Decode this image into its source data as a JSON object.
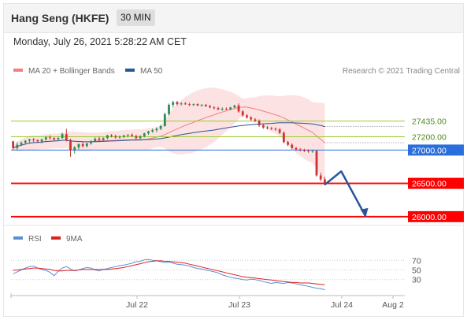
{
  "header": {
    "title": "Hang Seng (HKFE)",
    "interval": "30 MIN"
  },
  "datetime": "Monday, July 26, 2021 5:28:22 AM CET",
  "credit": "Research © 2021 Trading Central",
  "colors": {
    "ma20": "#f08080",
    "ma50": "#2a5599",
    "support_line": "#ff0000",
    "pivot_line": "#2a6fdb",
    "resistance_line": "#9acd32",
    "up_candle": "#2e8b57",
    "down_candle": "#cc3333",
    "arrow": "#2a5599",
    "rsi": "#5b8fd6",
    "rsi_ma": "#dd2222"
  },
  "chart_data": [
    {
      "type": "line",
      "name": "price-chart",
      "legend": [
        {
          "label": "MA 20 + Bollinger Bands",
          "color": "#f08080"
        },
        {
          "label": "MA 50",
          "color": "#2a5599"
        }
      ],
      "x_ticks": [
        "Jul 22",
        "Jul 23",
        "Jul 24",
        "Aug 2"
      ],
      "ylim": [
        25880,
        28070
      ],
      "candles": [
        [
          27130,
          27140,
          27000,
          27030
        ],
        [
          27030,
          27120,
          27000,
          27080
        ],
        [
          27080,
          27130,
          27060,
          27110
        ],
        [
          27110,
          27150,
          27080,
          27140
        ],
        [
          27140,
          27170,
          27110,
          27160
        ],
        [
          27160,
          27180,
          27120,
          27150
        ],
        [
          27150,
          27160,
          27110,
          27130
        ],
        [
          27130,
          27170,
          27100,
          27160
        ],
        [
          27160,
          27210,
          27140,
          27190
        ],
        [
          27190,
          27220,
          27160,
          27180
        ],
        [
          27180,
          27190,
          27140,
          27160
        ],
        [
          27160,
          27200,
          27140,
          27180
        ],
        [
          27180,
          27260,
          27170,
          27240
        ],
        [
          27240,
          27320,
          27130,
          27150
        ],
        [
          27150,
          27170,
          26900,
          27000
        ],
        [
          27000,
          27060,
          26950,
          27040
        ],
        [
          27040,
          27100,
          27010,
          27090
        ],
        [
          27090,
          27120,
          27040,
          27060
        ],
        [
          27060,
          27110,
          27040,
          27100
        ],
        [
          27100,
          27150,
          27080,
          27130
        ],
        [
          27130,
          27190,
          27120,
          27170
        ],
        [
          27170,
          27200,
          27130,
          27150
        ],
        [
          27150,
          27190,
          27140,
          27180
        ],
        [
          27180,
          27230,
          27160,
          27220
        ],
        [
          27220,
          27240,
          27190,
          27210
        ],
        [
          27210,
          27230,
          27170,
          27190
        ],
        [
          27190,
          27220,
          27170,
          27200
        ],
        [
          27200,
          27230,
          27180,
          27220
        ],
        [
          27220,
          27240,
          27190,
          27230
        ],
        [
          27230,
          27250,
          27200,
          27210
        ],
        [
          27210,
          27230,
          27160,
          27180
        ],
        [
          27180,
          27220,
          27160,
          27210
        ],
        [
          27210,
          27260,
          27190,
          27250
        ],
        [
          27250,
          27290,
          27230,
          27280
        ],
        [
          27280,
          27320,
          27260,
          27300
        ],
        [
          27300,
          27340,
          27270,
          27320
        ],
        [
          27320,
          27380,
          27300,
          27360
        ],
        [
          27360,
          27560,
          27350,
          27540
        ],
        [
          27540,
          27700,
          27520,
          27680
        ],
        [
          27680,
          27740,
          27640,
          27720
        ],
        [
          27720,
          27740,
          27670,
          27690
        ],
        [
          27690,
          27720,
          27670,
          27700
        ],
        [
          27700,
          27720,
          27680,
          27690
        ],
        [
          27690,
          27710,
          27660,
          27680
        ],
        [
          27680,
          27700,
          27660,
          27690
        ],
        [
          27690,
          27700,
          27660,
          27670
        ],
        [
          27670,
          27690,
          27650,
          27680
        ],
        [
          27680,
          27690,
          27650,
          27660
        ],
        [
          27660,
          27680,
          27630,
          27640
        ],
        [
          27640,
          27660,
          27610,
          27630
        ],
        [
          27630,
          27650,
          27600,
          27610
        ],
        [
          27610,
          27640,
          27590,
          27620
        ],
        [
          27620,
          27640,
          27600,
          27610
        ],
        [
          27610,
          27650,
          27600,
          27640
        ],
        [
          27640,
          27680,
          27630,
          27670
        ],
        [
          27670,
          27700,
          27560,
          27580
        ],
        [
          27580,
          27600,
          27500,
          27520
        ],
        [
          27520,
          27540,
          27470,
          27490
        ],
        [
          27490,
          27510,
          27440,
          27460
        ],
        [
          27460,
          27480,
          27420,
          27440
        ],
        [
          27440,
          27460,
          27350,
          27370
        ],
        [
          27370,
          27390,
          27320,
          27340
        ],
        [
          27340,
          27360,
          27310,
          27330
        ],
        [
          27330,
          27350,
          27300,
          27320
        ],
        [
          27320,
          27340,
          27290,
          27310
        ],
        [
          27310,
          27330,
          27240,
          27260
        ],
        [
          27260,
          27280,
          27100,
          27120
        ],
        [
          27120,
          27140,
          27060,
          27080
        ],
        [
          27080,
          27100,
          27010,
          27030
        ],
        [
          27030,
          27050,
          26990,
          27010
        ],
        [
          27010,
          27030,
          26980,
          27000
        ],
        [
          27000,
          27020,
          26970,
          26990
        ],
        [
          26990,
          27010,
          26960,
          26980
        ],
        [
          26980,
          27000,
          26960,
          26990
        ],
        [
          26990,
          26990,
          26600,
          26620
        ],
        [
          26620,
          26660,
          26530,
          26560
        ],
        [
          26560,
          26600,
          26470,
          26480
        ]
      ],
      "levels": [
        {
          "label": "27435.00",
          "value": 27435,
          "kind": "resistance"
        },
        {
          "label": "27200.00",
          "value": 27200,
          "kind": "resistance"
        },
        {
          "label": "27000.00",
          "value": 27000,
          "kind": "pivot"
        },
        {
          "label": "26500.00",
          "value": 26500,
          "kind": "support"
        },
        {
          "label": "26000.00",
          "value": 26000,
          "kind": "support"
        }
      ],
      "forecast_path": [
        [
          76,
          26480
        ],
        [
          80,
          26680
        ],
        [
          86,
          26000
        ]
      ]
    },
    {
      "type": "line",
      "name": "rsi-chart",
      "legend": [
        {
          "label": "RSI",
          "color": "#5b8fd6"
        },
        {
          "label": "9MA",
          "color": "#dd2222"
        }
      ],
      "y_ticks": [
        "70",
        "50",
        "30"
      ],
      "ylim": [
        5,
        95
      ],
      "rsi": [
        42,
        46,
        50,
        54,
        57,
        58,
        54,
        51,
        49,
        45,
        38,
        47,
        54,
        57,
        52,
        48,
        50,
        53,
        55,
        54,
        50,
        48,
        51,
        53,
        55,
        57,
        59,
        60,
        62,
        64,
        67,
        68,
        71,
        72,
        70,
        69,
        67,
        65,
        66,
        64,
        62,
        61,
        60,
        58,
        55,
        53,
        52,
        50,
        48,
        46,
        44,
        40,
        37,
        35,
        33,
        32,
        30,
        29,
        31,
        30,
        28,
        26,
        24,
        22,
        24,
        23,
        22,
        24,
        23,
        21,
        19,
        18,
        16,
        14,
        12,
        11,
        9
      ],
      "rsi_ma": [
        49,
        50,
        51,
        52,
        53,
        54,
        54,
        53,
        52,
        51,
        49,
        48,
        48,
        49,
        49,
        49,
        50,
        51,
        51,
        51,
        51,
        51,
        51,
        51,
        52,
        53,
        54,
        55,
        57,
        59,
        61,
        63,
        65,
        67,
        68,
        69,
        69,
        68,
        68,
        67,
        66,
        65,
        64,
        62,
        60,
        58,
        56,
        54,
        52,
        50,
        48,
        46,
        44,
        42,
        40,
        38,
        36,
        35,
        34,
        33,
        32,
        31,
        30,
        29,
        28,
        27,
        26,
        25,
        24,
        24,
        23,
        23,
        23,
        22,
        21,
        20,
        19
      ]
    }
  ]
}
